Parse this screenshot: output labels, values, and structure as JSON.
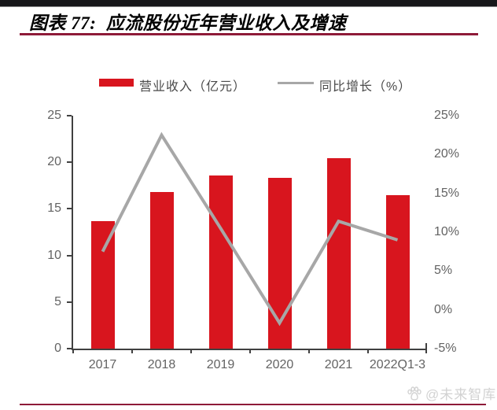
{
  "header": {
    "title": "图表 77:  应流股份近年营业收入及增速"
  },
  "watermark": {
    "text": "@未来智库"
  },
  "colors": {
    "bar_red": "#d8151e",
    "line_gray": "#a7a7a7",
    "rule_maroon": "#8e1a38",
    "axis_text": "#636363",
    "top_strip": "#17171a",
    "watermark_gray": "#d2d2d2"
  },
  "chart_data": {
    "type": "bar",
    "subtype": "bar+line combo, dual axis",
    "title": "应流股份近年营业收入及增速",
    "categories": [
      "2017",
      "2018",
      "2019",
      "2020",
      "2021",
      "2022Q1-3"
    ],
    "series": [
      {
        "name": "营业收入（亿元）",
        "type": "bar",
        "axis": "left",
        "color": "#d8151e",
        "values": [
          13.7,
          16.8,
          18.6,
          18.3,
          20.4,
          16.5
        ]
      },
      {
        "name": "同比增长（%）",
        "type": "line",
        "axis": "right",
        "color": "#a7a7a7",
        "values": [
          7.5,
          22.5,
          10.5,
          -1.7,
          11.4,
          9.0
        ]
      }
    ],
    "left_axis": {
      "min": 0,
      "max": 25,
      "ticks": [
        "0",
        "5",
        "10",
        "15",
        "20",
        "25"
      ]
    },
    "right_axis": {
      "min": -5,
      "max": 25,
      "ticks": [
        "-5%",
        "0%",
        "5%",
        "10%",
        "15%",
        "20%",
        "25%"
      ]
    },
    "grid": false,
    "legend_position": "top"
  }
}
